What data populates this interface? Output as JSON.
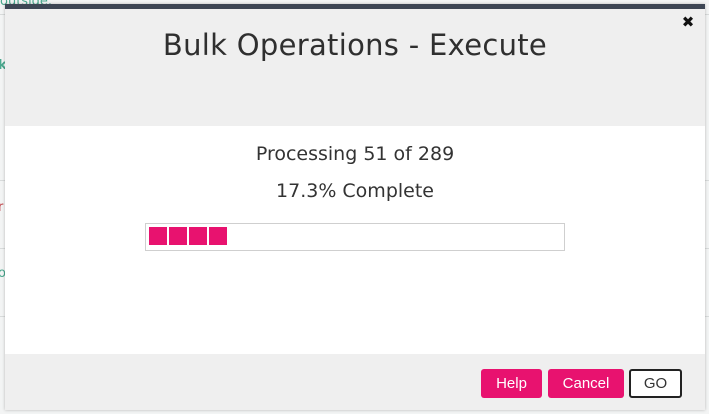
{
  "background": {
    "fragment_1": "outside.",
    "fragment_2": "k",
    "fragment_3": "r",
    "fragment_4": "o"
  },
  "modal": {
    "title": "Bulk Operations - Execute",
    "close_icon": "✖",
    "progress": {
      "processed": 51,
      "total": 289,
      "processing_text": "Processing 51 of 289",
      "percent_text": "17.3% Complete",
      "percent_complete": 17.3,
      "filled_blocks": 4
    },
    "buttons": {
      "help": "Help",
      "cancel": "Cancel",
      "go": "GO"
    }
  },
  "colors": {
    "accent": "#e8126f",
    "header_bar": "#3d4654"
  }
}
